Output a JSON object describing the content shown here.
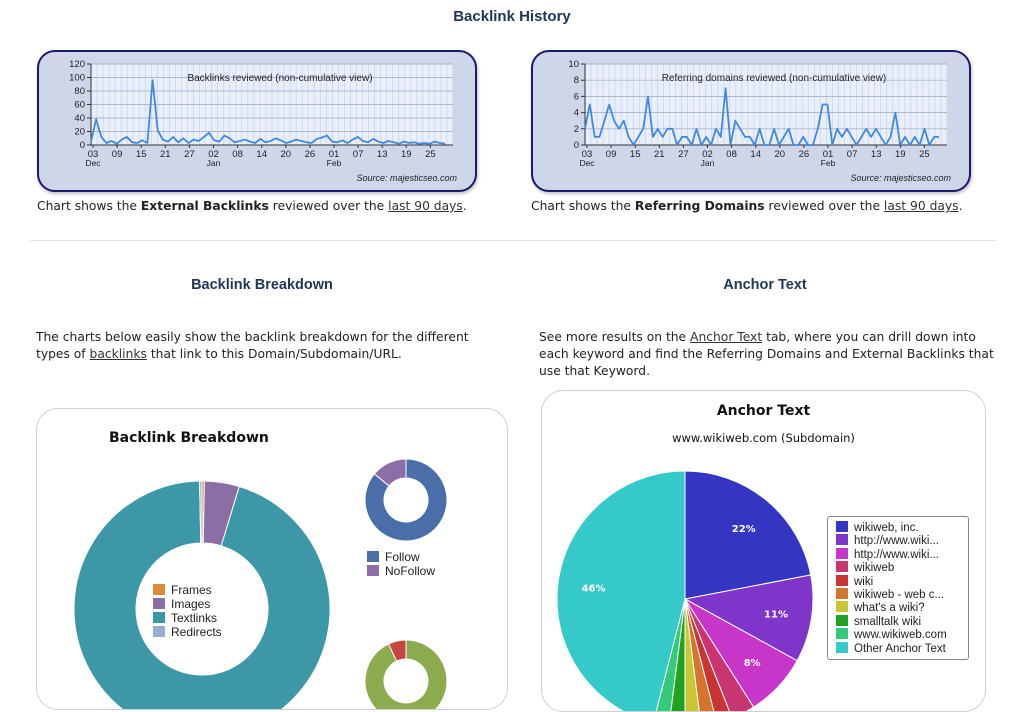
{
  "page": {
    "title": "Backlink History"
  },
  "history": {
    "backlinks": {
      "chart_title": "Backlinks reviewed (non-cumulative view)",
      "source": "Source: majesticseo.com",
      "caption_pre": "Chart shows the ",
      "caption_bold": "External Backlinks",
      "caption_mid": " reviewed over the ",
      "caption_link": "last 90 days",
      "caption_end": "."
    },
    "domains": {
      "chart_title": "Referring domains reviewed (non-cumulative view)",
      "source": "Source: majesticseo.com",
      "caption_pre": "Chart shows the ",
      "caption_bold": "Referring Domains",
      "caption_mid": " reviewed over the ",
      "caption_link": "last 90 days",
      "caption_end": "."
    }
  },
  "breakdown": {
    "heading": "Backlink Breakdown",
    "para_pre": "The charts below easily show the backlink breakdown for the different types of ",
    "para_link": "backlinks",
    "para_post": " that link to this Domain/Subdomain/URL.",
    "panel_title": "Backlink Breakdown"
  },
  "anchor": {
    "heading": "Anchor Text",
    "para_pre": "See more results on the ",
    "para_link": "Anchor Text",
    "para_post": " tab, where you can drill down into each keyword and find the Referring Domains and External Backlinks that use that Keyword.",
    "panel_title": "Anchor Text",
    "panel_subtitle": "www.wikiweb.com (Subdomain)"
  },
  "colors": {
    "line": "#3f8ae0",
    "plot_bg": "#e9eef9",
    "teal": "#3c97a7",
    "follow": "#4a6fa8",
    "nofollow": "#8b6ea6",
    "ring_green": "#8bab4e",
    "ring_red": "#c4463c"
  },
  "chart_data": [
    {
      "type": "line",
      "title": "Backlinks reviewed (non-cumulative view)",
      "x_ticks": [
        "03",
        "09",
        "15",
        "21",
        "27",
        "02",
        "08",
        "14",
        "20",
        "26",
        "01",
        "07",
        "13",
        "19",
        "25"
      ],
      "x_month_labels": [
        "Dec",
        "Jan",
        "Feb"
      ],
      "y_ticks": [
        0,
        20,
        40,
        60,
        80,
        100,
        120
      ],
      "ylim": [
        0,
        120
      ],
      "values": [
        5,
        38,
        12,
        3,
        6,
        2,
        8,
        12,
        4,
        3,
        7,
        3,
        96,
        22,
        8,
        5,
        12,
        4,
        10,
        3,
        8,
        6,
        12,
        18,
        7,
        5,
        14,
        10,
        4,
        6,
        8,
        5,
        3,
        9,
        4,
        6,
        10,
        7,
        3,
        5,
        8,
        6,
        4,
        3,
        9,
        11,
        14,
        5,
        4,
        7,
        3,
        8,
        12,
        6,
        4,
        9,
        5,
        3,
        6,
        4,
        2,
        5,
        3,
        4,
        2,
        3,
        2,
        5,
        3,
        2
      ]
    },
    {
      "type": "line",
      "title": "Referring domains reviewed (non-cumulative view)",
      "x_ticks": [
        "03",
        "09",
        "15",
        "21",
        "27",
        "02",
        "08",
        "14",
        "20",
        "26",
        "01",
        "07",
        "13",
        "19",
        "25"
      ],
      "x_month_labels": [
        "Dec",
        "Jan",
        "Feb"
      ],
      "y_ticks": [
        0,
        2,
        4,
        6,
        8,
        10
      ],
      "ylim": [
        0,
        10
      ],
      "values": [
        2,
        5,
        1,
        1,
        3,
        5,
        3,
        2,
        3,
        1,
        0,
        1,
        2,
        6,
        1,
        2,
        1,
        2,
        2,
        0,
        1,
        1,
        0,
        2,
        0,
        1,
        0,
        2,
        1,
        7,
        0,
        3,
        2,
        1,
        1,
        0,
        2,
        0,
        0,
        2,
        0,
        1,
        2,
        0,
        0,
        1,
        0,
        0,
        2,
        5,
        5,
        0,
        2,
        1,
        2,
        1,
        0,
        1,
        2,
        1,
        2,
        1,
        0,
        1,
        4,
        0,
        1,
        0,
        1,
        0,
        2,
        0,
        1,
        1
      ]
    },
    {
      "type": "pie",
      "title": "Backlink Breakdown",
      "donut": true,
      "slices": [
        {
          "label": "Frames",
          "value": 0.3,
          "color": "#d98b3a"
        },
        {
          "label": "Images",
          "value": 4.4,
          "color": "#8b6ea6"
        },
        {
          "label": "Textlinks",
          "value": 95.0,
          "color": "#3c97a7"
        },
        {
          "label": "Redirects",
          "value": 0.3,
          "color": "#9aaed4"
        }
      ]
    },
    {
      "type": "pie",
      "donut": true,
      "slices": [
        {
          "label": "Follow",
          "value": 86,
          "color": "#4a6fa8"
        },
        {
          "label": "NoFollow",
          "value": 14,
          "color": "#8b6ea6"
        }
      ]
    },
    {
      "type": "pie",
      "title": "Anchor Text",
      "subtitle": "www.wikiweb.com (Subdomain)",
      "slices": [
        {
          "label": "wikiweb, inc.",
          "value": 22,
          "pct_label": "22%",
          "color": "#3535c4"
        },
        {
          "label": "http://www.wiki...",
          "value": 11,
          "pct_label": "11%",
          "color": "#7f35c9"
        },
        {
          "label": "http://www.wiki...",
          "value": 8,
          "pct_label": "8%",
          "color": "#c835c9"
        },
        {
          "label": "wikiweb",
          "value": 3,
          "pct_label": "",
          "color": "#c93570"
        },
        {
          "label": "wiki",
          "value": 2,
          "pct_label": "",
          "color": "#c93535"
        },
        {
          "label": "wikiweb - web c...",
          "value": 2,
          "pct_label": "",
          "color": "#d4742e"
        },
        {
          "label": "what's a wiki?",
          "value": 2,
          "pct_label": "",
          "color": "#c9c635"
        },
        {
          "label": "smalltalk wiki",
          "value": 2,
          "pct_label": "",
          "color": "#21a321"
        },
        {
          "label": "www.wikiweb.com",
          "value": 2,
          "pct_label": "",
          "color": "#35c97a"
        },
        {
          "label": "Other Anchor Text",
          "value": 46,
          "pct_label": "46%",
          "color": "#35c9c9"
        }
      ]
    }
  ]
}
